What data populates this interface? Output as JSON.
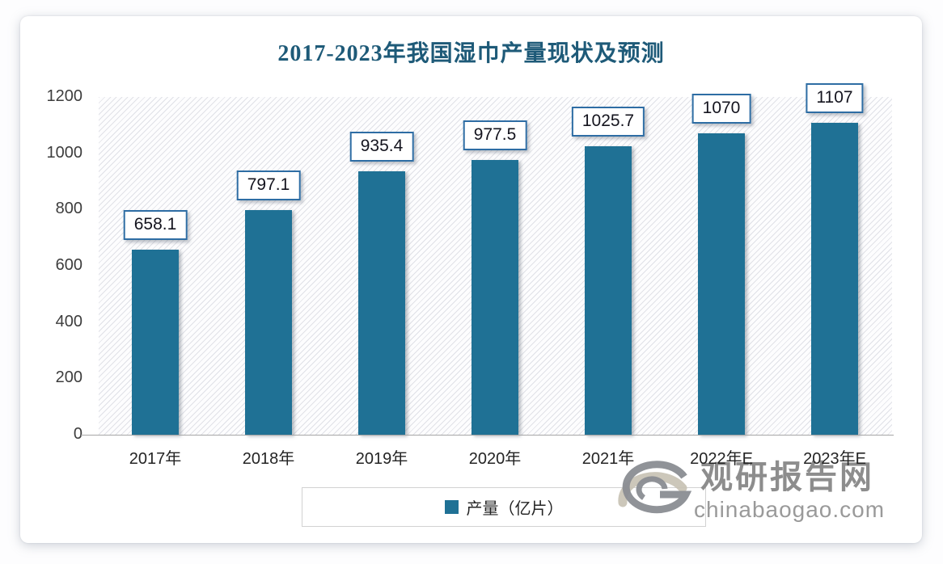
{
  "chart_data": {
    "type": "bar",
    "title": "2017-2023年我国湿巾产量现状及预测",
    "categories": [
      "2017年",
      "2018年",
      "2019年",
      "2020年",
      "2021年",
      "2022年E",
      "2023年E"
    ],
    "series": [
      {
        "name": "产量（亿片）",
        "values": [
          658.1,
          797.1,
          935.4,
          977.5,
          1025.7,
          1070,
          1107
        ]
      }
    ],
    "value_labels": [
      "658.1",
      "797.1",
      "935.4",
      "977.5",
      "1025.7",
      "1070",
      "1107"
    ],
    "ylabel": "",
    "xlabel": "",
    "ylim": [
      0,
      1200
    ],
    "yticks": [
      "0",
      "200",
      "400",
      "600",
      "800",
      "1000",
      "1200"
    ],
    "grid": false,
    "legend_position": "bottom",
    "legend_label": "产量（亿片）",
    "colors": {
      "bar": "#1f7195",
      "title_text": "#1e5a78",
      "label_box_border": "#2e6da4",
      "label_text": "#14141e",
      "axis_line": "#a6a6a6"
    }
  },
  "watermark": {
    "logo_icon": "swirl-logo",
    "name": "观研报告网",
    "url": "chinabaogao.com"
  }
}
